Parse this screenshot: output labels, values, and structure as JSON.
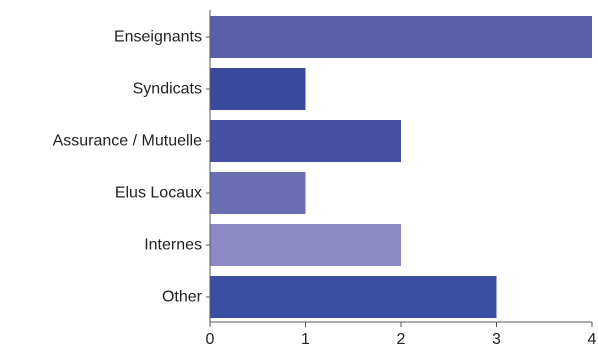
{
  "chart_data": {
    "type": "bar",
    "orientation": "horizontal",
    "categories": [
      "Enseignants",
      "Syndicats",
      "Assurance / Mutuelle",
      "Elus Locaux",
      "Internes",
      "Other"
    ],
    "values": [
      4,
      1,
      2,
      1,
      2,
      3
    ],
    "bar_colors": [
      "#5a5faa",
      "#3a4a9f",
      "#4550a5",
      "#6b6db3",
      "#8c89c5",
      "#3a4ea2"
    ],
    "xlim": [
      0,
      4
    ],
    "xticks": [
      "0",
      "1",
      "2",
      "3",
      "4"
    ],
    "grid": false,
    "title": "",
    "xlabel": "",
    "ylabel": ""
  },
  "colors": {
    "axis": "#555555",
    "tick_text": "#222222"
  }
}
